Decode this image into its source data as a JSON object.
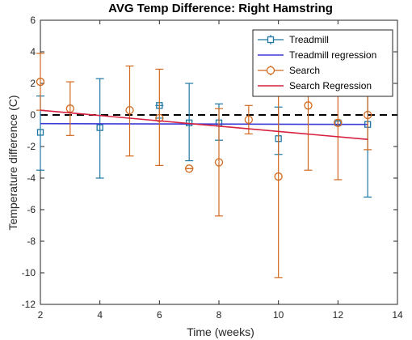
{
  "chart_data": {
    "type": "scatter",
    "title": "AVG Temp Difference: Right Hamstring",
    "xlabel": "Time (weeks)",
    "ylabel": "Temperature difference (C)",
    "xlim": [
      2,
      14
    ],
    "ylim": [
      -12,
      6
    ],
    "xticks": [
      2,
      4,
      6,
      8,
      10,
      12,
      14
    ],
    "yticks": [
      -12,
      -10,
      -8,
      -6,
      -4,
      -2,
      0,
      2,
      4,
      6
    ],
    "grid": false,
    "legend_position": "top-right",
    "reference_line": {
      "y": 0,
      "style": "dashed",
      "color": "#000000"
    },
    "series": [
      {
        "name": "Treadmill",
        "kind": "errorbar",
        "marker": "square",
        "color": "#1f77a4",
        "points": [
          {
            "x": 2,
            "y": -1.1,
            "low": -3.5,
            "high": 1.2
          },
          {
            "x": 4,
            "y": -0.8,
            "low": -4.0,
            "high": 2.3
          },
          {
            "x": 6,
            "y": 0.6,
            "low": -0.2,
            "high": 0.6
          },
          {
            "x": 7,
            "y": -0.5,
            "low": -2.9,
            "high": 2.0
          },
          {
            "x": 8,
            "y": -0.5,
            "low": -1.6,
            "high": 0.7
          },
          {
            "x": 10,
            "y": -1.5,
            "low": -2.5,
            "high": 0.5
          },
          {
            "x": 12,
            "y": -0.5,
            "low": -0.6,
            "high": -0.4
          },
          {
            "x": 13,
            "y": -0.6,
            "low": -5.2,
            "high": 2.0
          }
        ]
      },
      {
        "name": "Treadmill regression",
        "kind": "line",
        "color": "#3b3bd6",
        "x": [
          2,
          13
        ],
        "y": [
          -0.55,
          -0.6
        ]
      },
      {
        "name": "Search",
        "kind": "errorbar",
        "marker": "circle",
        "color": "#d2691e",
        "points": [
          {
            "x": 2,
            "y": 2.1,
            "low": 0.3,
            "high": 3.9
          },
          {
            "x": 3,
            "y": 0.4,
            "low": -1.3,
            "high": 2.1
          },
          {
            "x": 5,
            "y": 0.3,
            "low": -2.6,
            "high": 3.1
          },
          {
            "x": 6,
            "y": -0.2,
            "low": -3.2,
            "high": 2.9
          },
          {
            "x": 7,
            "y": -3.4,
            "low": -3.4,
            "high": -3.4
          },
          {
            "x": 8,
            "y": -3.0,
            "low": -6.4,
            "high": 0.4
          },
          {
            "x": 9,
            "y": -0.3,
            "low": -1.2,
            "high": 0.6
          },
          {
            "x": 10,
            "y": -3.9,
            "low": -10.3,
            "high": 2.5
          },
          {
            "x": 11,
            "y": 0.6,
            "low": -3.5,
            "high": 4.7
          },
          {
            "x": 12,
            "y": -0.5,
            "low": -4.1,
            "high": 3.1
          },
          {
            "x": 13,
            "y": 0.0,
            "low": -2.2,
            "high": 2.2
          }
        ]
      },
      {
        "name": "Search Regression",
        "kind": "line",
        "color": "#d6213f",
        "x": [
          2,
          13
        ],
        "y": [
          0.3,
          -1.55
        ]
      }
    ]
  }
}
